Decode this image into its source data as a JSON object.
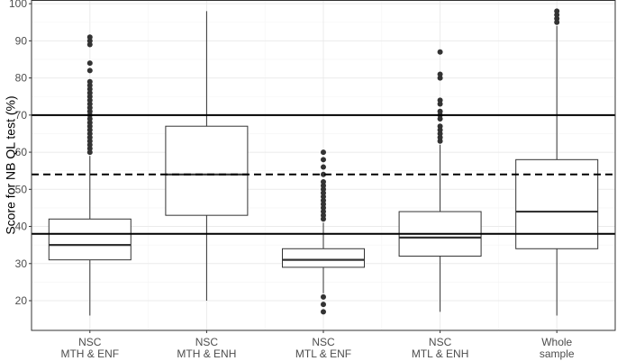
{
  "chart_data": {
    "type": "boxplot",
    "title": "",
    "xlabel": "",
    "ylabel": "Score for NB QL test (%)",
    "ylim": [
      12,
      101
    ],
    "yticks": [
      20,
      30,
      40,
      50,
      60,
      70,
      80,
      90,
      100
    ],
    "grid": true,
    "legend": "none",
    "colors": {
      "background": "#ffffff",
      "grid_major": "#ebebeb",
      "grid_minor": "#f5f5f5",
      "box_stroke": "#333333",
      "median": "#333333",
      "outlier": "#333333",
      "reference_line": "#000000",
      "tick_label": "#4d4d4d",
      "panel_border": "#333333"
    },
    "categories": [
      [
        "NSC",
        "MTH & ENF"
      ],
      [
        "NSC",
        "MTH & ENH"
      ],
      [
        "NSC",
        "MTL & ENF"
      ],
      [
        "NSC",
        "MTL & ENH"
      ],
      [
        "Whole",
        "sample"
      ]
    ],
    "boxes": [
      {
        "min": 16,
        "q1": 31,
        "median": 35,
        "q3": 42,
        "max": 59,
        "outliers": [
          60,
          61,
          62,
          63,
          64,
          65,
          66,
          67,
          68,
          69,
          70,
          71,
          72,
          73,
          74,
          75,
          76,
          77,
          78,
          79,
          82,
          84,
          89,
          90,
          91
        ]
      },
      {
        "min": 20,
        "q1": 43,
        "median": 54,
        "q3": 67,
        "max": 98,
        "outliers": []
      },
      {
        "min": 22,
        "q1": 29,
        "median": 31,
        "q3": 34,
        "max": 41,
        "outliers": [
          17,
          19,
          21,
          42,
          43,
          44,
          45,
          46,
          47,
          48,
          49,
          50,
          51,
          52,
          54,
          56,
          58,
          60
        ]
      },
      {
        "min": 17,
        "q1": 32,
        "median": 37,
        "q3": 44,
        "max": 62,
        "outliers": [
          63,
          64,
          65,
          66,
          67,
          69,
          70,
          71,
          73,
          74,
          80,
          81,
          87
        ]
      },
      {
        "min": 16,
        "q1": 34,
        "median": 44,
        "q3": 58,
        "max": 94,
        "outliers": [
          95,
          96,
          97,
          98
        ]
      }
    ],
    "reference_lines": [
      {
        "y": 70,
        "style": "solid"
      },
      {
        "y": 54,
        "style": "dashed"
      },
      {
        "y": 38,
        "style": "solid"
      }
    ]
  }
}
